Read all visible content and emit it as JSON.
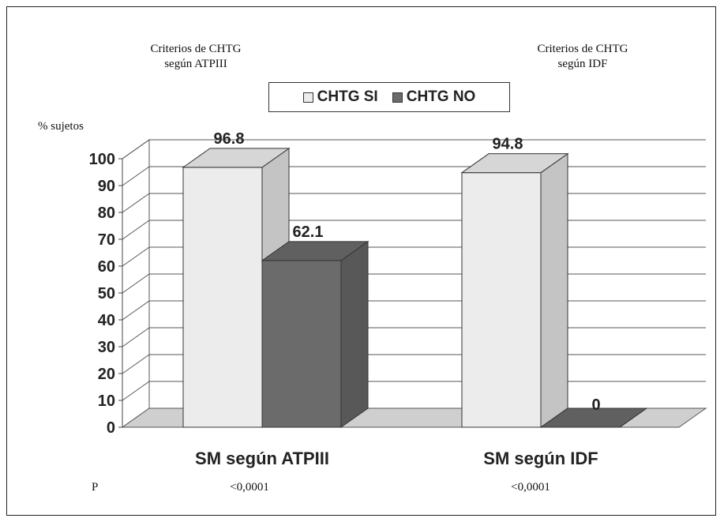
{
  "annotations": {
    "left_title_line1": "Criterios de CHTG",
    "left_title_line2": "según ATPIII",
    "right_title_line1": "Criterios de CHTG",
    "right_title_line2": "según IDF",
    "ylabel": "% sujetos",
    "p_label": "P",
    "p_values": [
      "<0,0001",
      "<0,0001"
    ]
  },
  "legend": [
    {
      "label": "CHTG SI",
      "color": "#ececec"
    },
    {
      "label": "CHTG NO",
      "color": "#6b6b6b"
    }
  ],
  "chart_data": {
    "type": "bar",
    "style": "3d-clustered",
    "categories": [
      "SM según ATPIII",
      "SM según IDF"
    ],
    "series": [
      {
        "name": "CHTG SI",
        "values": [
          96.8,
          94.8
        ],
        "color": "#ececec"
      },
      {
        "name": "CHTG NO",
        "values": [
          62.1,
          0
        ],
        "color": "#6b6b6b"
      }
    ],
    "data_labels": [
      "96.8",
      "62.1",
      "94.8",
      "0"
    ],
    "ylabel": "% sujetos",
    "ylim": [
      0,
      100
    ],
    "yticks": [
      0,
      10,
      20,
      30,
      40,
      50,
      60,
      70,
      80,
      90,
      100
    ],
    "grid": true,
    "legend_position": "top-center"
  }
}
